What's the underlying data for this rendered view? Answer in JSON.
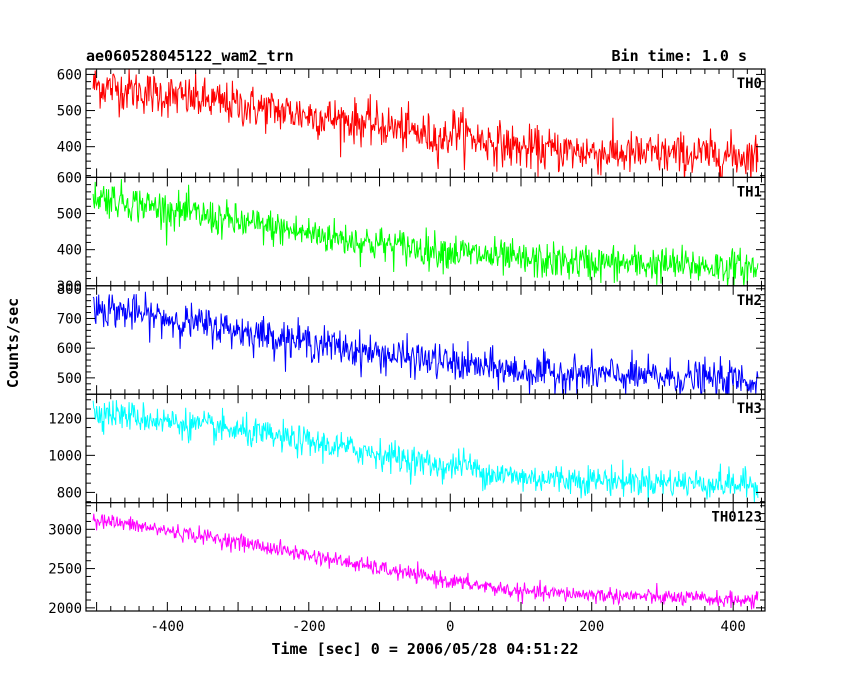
{
  "header": {
    "title": "ae060528045122_wam2_trn",
    "bin_time": "Bin time: 1.0 s"
  },
  "chart_data": {
    "type": "line",
    "title": "ae060528045122_wam2_trn",
    "xlabel": "Time [sec] 0 = 2006/05/28 04:51:22",
    "ylabel": "Counts/sec",
    "xlim": [
      -515,
      445
    ],
    "x_range": [
      -505,
      435
    ],
    "x_ticks": [
      -400,
      -200,
      0,
      200,
      400
    ],
    "grid": false,
    "panels": [
      {
        "name": "TH0",
        "color": "#ff0000",
        "ylim": [
          315,
          615
        ],
        "y_ticks": [
          400,
          500,
          600
        ],
        "trend": [
          [
            -505,
            570
          ],
          [
            -300,
            515
          ],
          [
            -100,
            460
          ],
          [
            -5,
            420
          ],
          [
            5,
            455
          ],
          [
            30,
            425
          ],
          [
            100,
            395
          ],
          [
            250,
            380
          ],
          [
            435,
            375
          ]
        ],
        "noise": 30
      },
      {
        "name": "TH1",
        "color": "#00ff00",
        "ylim": [
          300,
          600
        ],
        "y_ticks": [
          300,
          400,
          500,
          600
        ],
        "trend": [
          [
            -505,
            550
          ],
          [
            -300,
            475
          ],
          [
            -100,
            415
          ],
          [
            0,
            395
          ],
          [
            100,
            370
          ],
          [
            435,
            350
          ]
        ],
        "noise": 25
      },
      {
        "name": "TH2",
        "color": "#0000ff",
        "ylim": [
          445,
          810
        ],
        "y_ticks": [
          500,
          600,
          700,
          800
        ],
        "trend": [
          [
            -505,
            740
          ],
          [
            -300,
            660
          ],
          [
            -100,
            580
          ],
          [
            0,
            550
          ],
          [
            100,
            520
          ],
          [
            435,
            490
          ]
        ],
        "noise": 30
      },
      {
        "name": "TH3",
        "color": "#00ffff",
        "ylim": [
          745,
          1330
        ],
        "y_ticks": [
          800,
          1000,
          1200
        ],
        "trend": [
          [
            -505,
            1240
          ],
          [
            -300,
            1130
          ],
          [
            -100,
            1010
          ],
          [
            0,
            930
          ],
          [
            15,
            965
          ],
          [
            40,
            915
          ],
          [
            100,
            880
          ],
          [
            435,
            840
          ]
        ],
        "noise": 40
      },
      {
        "name": "TH0123",
        "color": "#ff00ff",
        "ylim": [
          1960,
          3340
        ],
        "y_ticks": [
          2000,
          2500,
          3000
        ],
        "trend": [
          [
            -505,
            3130
          ],
          [
            -300,
            2840
          ],
          [
            -100,
            2500
          ],
          [
            0,
            2340
          ],
          [
            100,
            2200
          ],
          [
            435,
            2090
          ]
        ],
        "noise": 50
      }
    ]
  }
}
